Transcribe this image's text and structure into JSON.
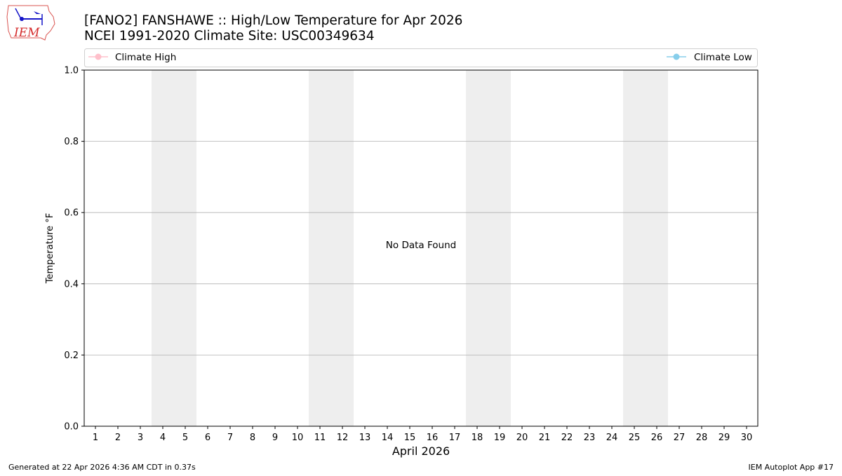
{
  "logo": {
    "text": "IEM"
  },
  "chart_data": {
    "type": "line",
    "title": "[FANO2] FANSHAWE :: High/Low Temperature for Apr 2026",
    "subtitle": "NCEI 1991-2020 Climate Site: USC00349634",
    "xlabel": "April 2026",
    "ylabel": "Temperature °F",
    "x_ticks": [
      "1",
      "2",
      "3",
      "4",
      "5",
      "6",
      "7",
      "8",
      "9",
      "10",
      "11",
      "12",
      "13",
      "14",
      "15",
      "16",
      "17",
      "18",
      "19",
      "20",
      "21",
      "22",
      "23",
      "24",
      "25",
      "26",
      "27",
      "28",
      "29",
      "30"
    ],
    "xlim": [
      0.5,
      30.5
    ],
    "ylim": [
      0,
      1
    ],
    "y_ticks": [
      "0.0",
      "0.2",
      "0.4",
      "0.6",
      "0.8",
      "1.0"
    ],
    "grid": "horizontal",
    "weekend_shading": [
      [
        3.5,
        5.5
      ],
      [
        10.5,
        12.5
      ],
      [
        17.5,
        19.5
      ],
      [
        24.5,
        26.5
      ]
    ],
    "legend": [
      {
        "name": "Climate High",
        "color": "#ffc0cb",
        "placement": "top-left"
      },
      {
        "name": "Climate Low",
        "color": "#87ceeb",
        "placement": "top-right"
      }
    ],
    "series": [
      {
        "name": "Climate High",
        "values": []
      },
      {
        "name": "Climate Low",
        "values": []
      }
    ],
    "annotation": "No Data Found"
  },
  "footer": {
    "left": "Generated at 22 Apr 2026 4:36 AM CDT in 0.37s",
    "right": "IEM Autoplot App #17"
  }
}
